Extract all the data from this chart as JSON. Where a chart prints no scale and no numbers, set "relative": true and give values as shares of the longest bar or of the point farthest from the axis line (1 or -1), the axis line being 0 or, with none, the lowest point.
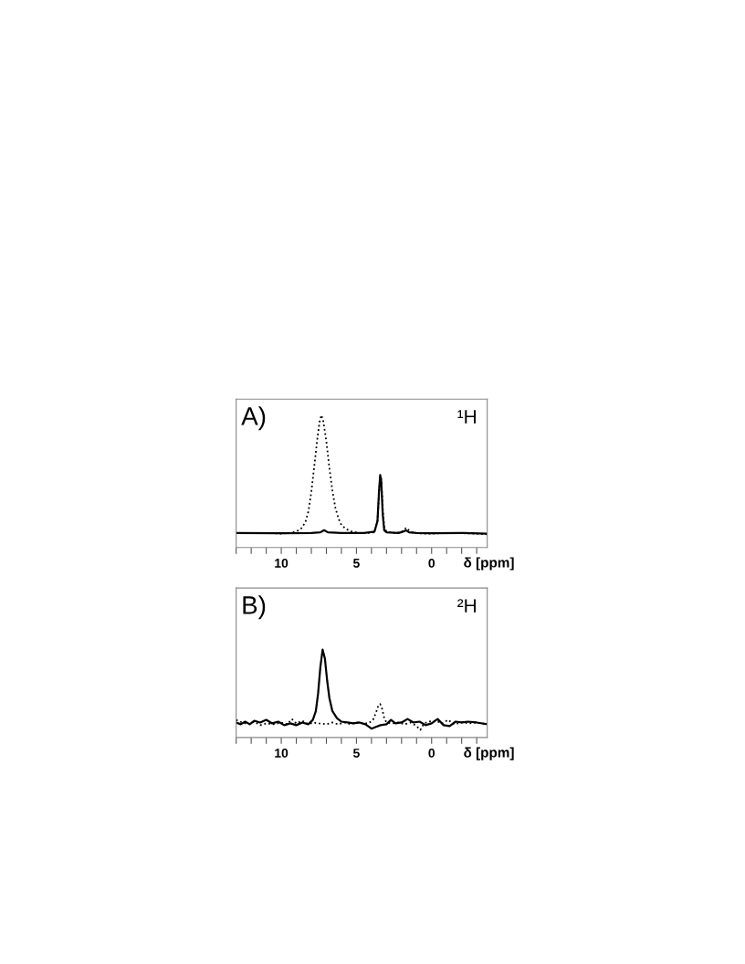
{
  "chart_data": [
    {
      "type": "line",
      "relative": true,
      "xlabel": "δ [ppm]",
      "annotations": [
        "A)",
        "¹H"
      ],
      "xlim": [
        13,
        -3.7
      ],
      "xticks": [
        {
          "value": 13,
          "label": null
        },
        {
          "value": 12,
          "label": null
        },
        {
          "value": 11,
          "label": null
        },
        10,
        {
          "value": 9,
          "label": null
        },
        {
          "value": 8,
          "label": null
        },
        {
          "value": 7,
          "label": null
        },
        {
          "value": 6,
          "label": null
        },
        5,
        {
          "value": 4,
          "label": null
        },
        {
          "value": 3,
          "label": null
        },
        {
          "value": 2,
          "label": null
        },
        {
          "value": 1,
          "label": null
        },
        0,
        {
          "value": -1,
          "label": null
        },
        {
          "value": -2,
          "label": null
        },
        {
          "value": -3,
          "label": null
        }
      ],
      "grid": false,
      "tick_labels": "x",
      "series": [
        {
          "color": "#000000",
          "line_style": "dotted",
          "x": [
            13,
            12,
            11,
            10,
            9.5,
            9,
            8.7,
            8.4,
            8.2,
            8.0,
            7.8,
            7.6,
            7.45,
            7.33,
            7.2,
            7.0,
            6.8,
            6.6,
            6.4,
            6.2,
            6.0,
            5.7,
            5.3,
            4.8,
            4.2,
            3.8,
            3.6,
            3.5,
            3.42,
            3.35,
            3.25,
            3.15,
            3.0,
            2.5,
            2.0,
            1.8,
            1.65,
            1.5,
            1.2,
            0.5,
            0,
            -1,
            -2,
            -3,
            -3.7
          ],
          "values": [
            0.11,
            0.108,
            0.11,
            0.105,
            0.11,
            0.122,
            0.14,
            0.19,
            0.27,
            0.42,
            0.62,
            0.82,
            0.95,
            1.0,
            0.95,
            0.8,
            0.6,
            0.43,
            0.3,
            0.22,
            0.17,
            0.14,
            0.12,
            0.11,
            0.11,
            0.115,
            0.2,
            0.4,
            0.54,
            0.52,
            0.3,
            0.15,
            0.12,
            0.11,
            0.115,
            0.14,
            0.15,
            0.13,
            0.11,
            0.105,
            0.105,
            0.11,
            0.108,
            0.105,
            0.1
          ]
        },
        {
          "color": "#000000",
          "line_style": "solid",
          "x": [
            13,
            10,
            8,
            7.4,
            7.15,
            6.9,
            6,
            4.5,
            3.8,
            3.6,
            3.5,
            3.42,
            3.35,
            3.25,
            3.15,
            3.0,
            2.2,
            1.9,
            1.7,
            1.5,
            1,
            0,
            -2,
            -3.7
          ],
          "values": [
            0.11,
            0.108,
            0.11,
            0.115,
            0.131,
            0.115,
            0.11,
            0.11,
            0.12,
            0.2,
            0.42,
            0.547,
            0.5,
            0.25,
            0.13,
            0.115,
            0.11,
            0.12,
            0.13,
            0.115,
            0.11,
            0.108,
            0.11,
            0.105
          ]
        }
      ]
    },
    {
      "type": "line",
      "relative": true,
      "xlabel": "δ [ppm]",
      "annotations": [
        "B)",
        "²H"
      ],
      "xlim": [
        13,
        -3.7
      ],
      "xticks": [
        {
          "value": 13,
          "label": null
        },
        {
          "value": 12,
          "label": null
        },
        {
          "value": 11,
          "label": null
        },
        10,
        {
          "value": 9,
          "label": null
        },
        {
          "value": 8,
          "label": null
        },
        {
          "value": 7,
          "label": null
        },
        {
          "value": 6,
          "label": null
        },
        5,
        {
          "value": 4,
          "label": null
        },
        {
          "value": 3,
          "label": null
        },
        {
          "value": 2,
          "label": null
        },
        {
          "value": 1,
          "label": null
        },
        0,
        {
          "value": -1,
          "label": null
        },
        {
          "value": -2,
          "label": null
        },
        {
          "value": -3,
          "label": null
        }
      ],
      "grid": false,
      "tick_labels": "x",
      "series": [
        {
          "color": "#000000",
          "line_style": "solid",
          "x": [
            13,
            12.7,
            12.4,
            12.1,
            11.8,
            11.4,
            11.0,
            10.6,
            10.2,
            9.8,
            9.4,
            9.0,
            8.6,
            8.2,
            7.9,
            7.7,
            7.55,
            7.4,
            7.25,
            7.1,
            6.95,
            6.8,
            6.6,
            6.3,
            6.0,
            5.6,
            5.2,
            4.8,
            4.4,
            4.0,
            3.7,
            3.4,
            3.0,
            2.7,
            2.4,
            2.0,
            1.6,
            1.2,
            0.8,
            0.4,
            0,
            -0.4,
            -0.8,
            -1.2,
            -1.6,
            -2.0,
            -2.4,
            -3.0,
            -3.7
          ],
          "values": [
            0.17,
            0.15,
            0.18,
            0.15,
            0.19,
            0.17,
            0.2,
            0.16,
            0.18,
            0.14,
            0.16,
            0.14,
            0.17,
            0.15,
            0.2,
            0.3,
            0.5,
            0.8,
            1.0,
            0.9,
            0.65,
            0.45,
            0.3,
            0.22,
            0.18,
            0.17,
            0.16,
            0.17,
            0.15,
            0.1,
            0.12,
            0.14,
            0.15,
            0.2,
            0.16,
            0.17,
            0.21,
            0.17,
            0.18,
            0.14,
            0.16,
            0.21,
            0.14,
            0.13,
            0.18,
            0.17,
            0.18,
            0.17,
            0.15
          ]
        },
        {
          "color": "#000000",
          "line_style": "dotted",
          "x": [
            13,
            12.6,
            12.2,
            11.8,
            11.4,
            11.0,
            10.5,
            10.0,
            9.6,
            9.3,
            9.0,
            8.6,
            8.2,
            7.9,
            7.5,
            7.0,
            6.6,
            6.2,
            5.8,
            5.4,
            5.0,
            4.6,
            4.2,
            3.9,
            3.7,
            3.55,
            3.42,
            3.3,
            3.15,
            3.0,
            2.6,
            2.2,
            1.8,
            1.4,
            1.0,
            0.75,
            0.5,
            0.2,
            -0.3,
            -0.7,
            -1.1,
            -1.5,
            -2.0,
            -2.5,
            -3.0,
            -3.7
          ],
          "values": [
            0.2,
            0.17,
            0.15,
            0.18,
            0.14,
            0.16,
            0.15,
            0.17,
            0.15,
            0.21,
            0.16,
            0.19,
            0.15,
            0.17,
            0.16,
            0.15,
            0.17,
            0.15,
            0.17,
            0.15,
            0.17,
            0.16,
            0.16,
            0.2,
            0.28,
            0.36,
            0.38,
            0.33,
            0.22,
            0.17,
            0.16,
            0.17,
            0.15,
            0.17,
            0.13,
            0.086,
            0.16,
            0.18,
            0.19,
            0.16,
            0.2,
            0.15,
            0.17,
            0.16,
            0.17,
            0.15
          ]
        }
      ]
    }
  ]
}
